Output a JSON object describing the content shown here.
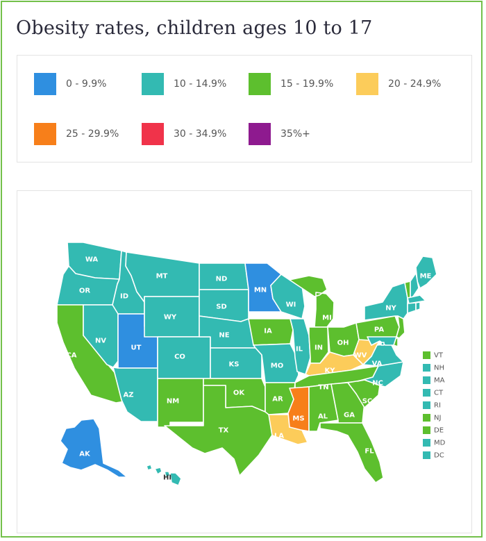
{
  "title": "Obesity rates, children ages 10 to 17",
  "legend": [
    {
      "label": "0 - 9.9%",
      "color": "#2f8fe0"
    },
    {
      "label": "10 - 14.9%",
      "color": "#33bab2"
    },
    {
      "label": "15 - 19.9%",
      "color": "#5dbf2e"
    },
    {
      "label": "20 - 24.9%",
      "color": "#fccc5a"
    },
    {
      "label": "25 - 29.9%",
      "color": "#f77f1a"
    },
    {
      "label": "30 - 34.9%",
      "color": "#f0334a"
    },
    {
      "label": "35%+",
      "color": "#8e1a8f"
    }
  ],
  "states": {
    "WA": {
      "label": "WA",
      "category": 1
    },
    "OR": {
      "label": "OR",
      "category": 1
    },
    "CA": {
      "label": "CA",
      "category": 2
    },
    "ID": {
      "label": "ID",
      "category": 1
    },
    "NV": {
      "label": "NV",
      "category": 1
    },
    "AZ": {
      "label": "AZ",
      "category": 1
    },
    "UT": {
      "label": "UT",
      "category": 0
    },
    "MT": {
      "label": "MT",
      "category": 1
    },
    "WY": {
      "label": "WY",
      "category": 1
    },
    "CO": {
      "label": "CO",
      "category": 1
    },
    "NM": {
      "label": "NM",
      "category": 2
    },
    "ND": {
      "label": "ND",
      "category": 1
    },
    "SD": {
      "label": "SD",
      "category": 1
    },
    "NE": {
      "label": "NE",
      "category": 1
    },
    "KS": {
      "label": "KS",
      "category": 1
    },
    "OK": {
      "label": "OK",
      "category": 2
    },
    "TX": {
      "label": "TX",
      "category": 2
    },
    "MN": {
      "label": "MN",
      "category": 0
    },
    "IA": {
      "label": "IA",
      "category": 2
    },
    "MO": {
      "label": "MO",
      "category": 1
    },
    "AR": {
      "label": "AR",
      "category": 2
    },
    "LA": {
      "label": "LA",
      "category": 3
    },
    "WI": {
      "label": "WI",
      "category": 1
    },
    "IL": {
      "label": "IL",
      "category": 1
    },
    "MI": {
      "label": "MI",
      "category": 2
    },
    "IN": {
      "label": "IN",
      "category": 2
    },
    "OH": {
      "label": "OH",
      "category": 2
    },
    "KY": {
      "label": "KY",
      "category": 3
    },
    "TN": {
      "label": "TN",
      "category": 2
    },
    "MS": {
      "label": "MS",
      "category": 4
    },
    "AL": {
      "label": "AL",
      "category": 2
    },
    "GA": {
      "label": "GA",
      "category": 2
    },
    "FL": {
      "label": "FL",
      "category": 2
    },
    "SC": {
      "label": "SC",
      "category": 2
    },
    "NC": {
      "label": "NC",
      "category": 1
    },
    "VA": {
      "label": "VA",
      "category": 1
    },
    "WV": {
      "label": "WV",
      "category": 3
    },
    "PA": {
      "label": "PA",
      "category": 2
    },
    "NY": {
      "label": "NY",
      "category": 1
    },
    "ME": {
      "label": "ME",
      "category": 1
    },
    "AK": {
      "label": "AK",
      "category": 0
    },
    "HI": {
      "label": "HI",
      "category": 1
    }
  },
  "small_states": [
    {
      "label": "VT",
      "category": 2
    },
    {
      "label": "NH",
      "category": 1
    },
    {
      "label": "MA",
      "category": 1
    },
    {
      "label": "CT",
      "category": 1
    },
    {
      "label": "RI",
      "category": 1
    },
    {
      "label": "NJ",
      "category": 2
    },
    {
      "label": "DE",
      "category": 2
    },
    {
      "label": "MD",
      "category": 1
    },
    {
      "label": "DC",
      "category": 1
    }
  ]
}
